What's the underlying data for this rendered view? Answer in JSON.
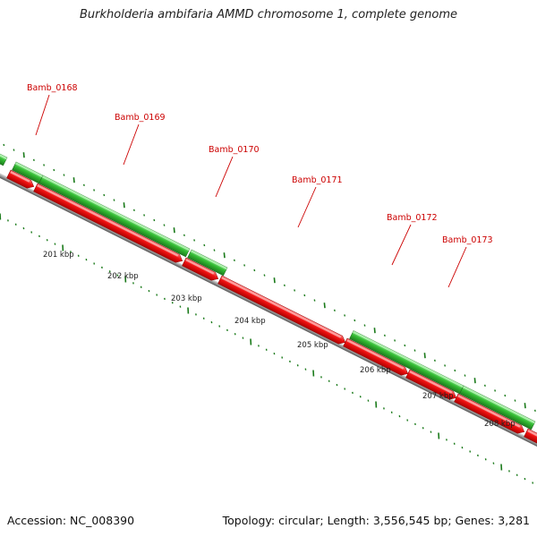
{
  "title": "Burkholderia ambifaria AMMD chromosome 1, complete genome",
  "footer": {
    "accession": "Accession: NC_008390",
    "summary": "Topology: circular; Length: 3,556,545 bp; Genes: 3,281"
  },
  "colors": {
    "forward_gene": "#33bb33",
    "reverse_gene": "#ee1111",
    "backbone": "#888888",
    "tick": "#1a7a1a",
    "label": "#cc0000"
  },
  "genes": [
    {
      "name": "Bamb_0168"
    },
    {
      "name": "Bamb_0169"
    },
    {
      "name": "Bamb_0170"
    },
    {
      "name": "Bamb_0171"
    },
    {
      "name": "Bamb_0172"
    },
    {
      "name": "Bamb_0173"
    }
  ],
  "kbp_labels": [
    "201 kbp",
    "202 kbp",
    "203 kbp",
    "204 kbp",
    "205 kbp",
    "206 kbp",
    "207 kbp",
    "208 kbp"
  ]
}
